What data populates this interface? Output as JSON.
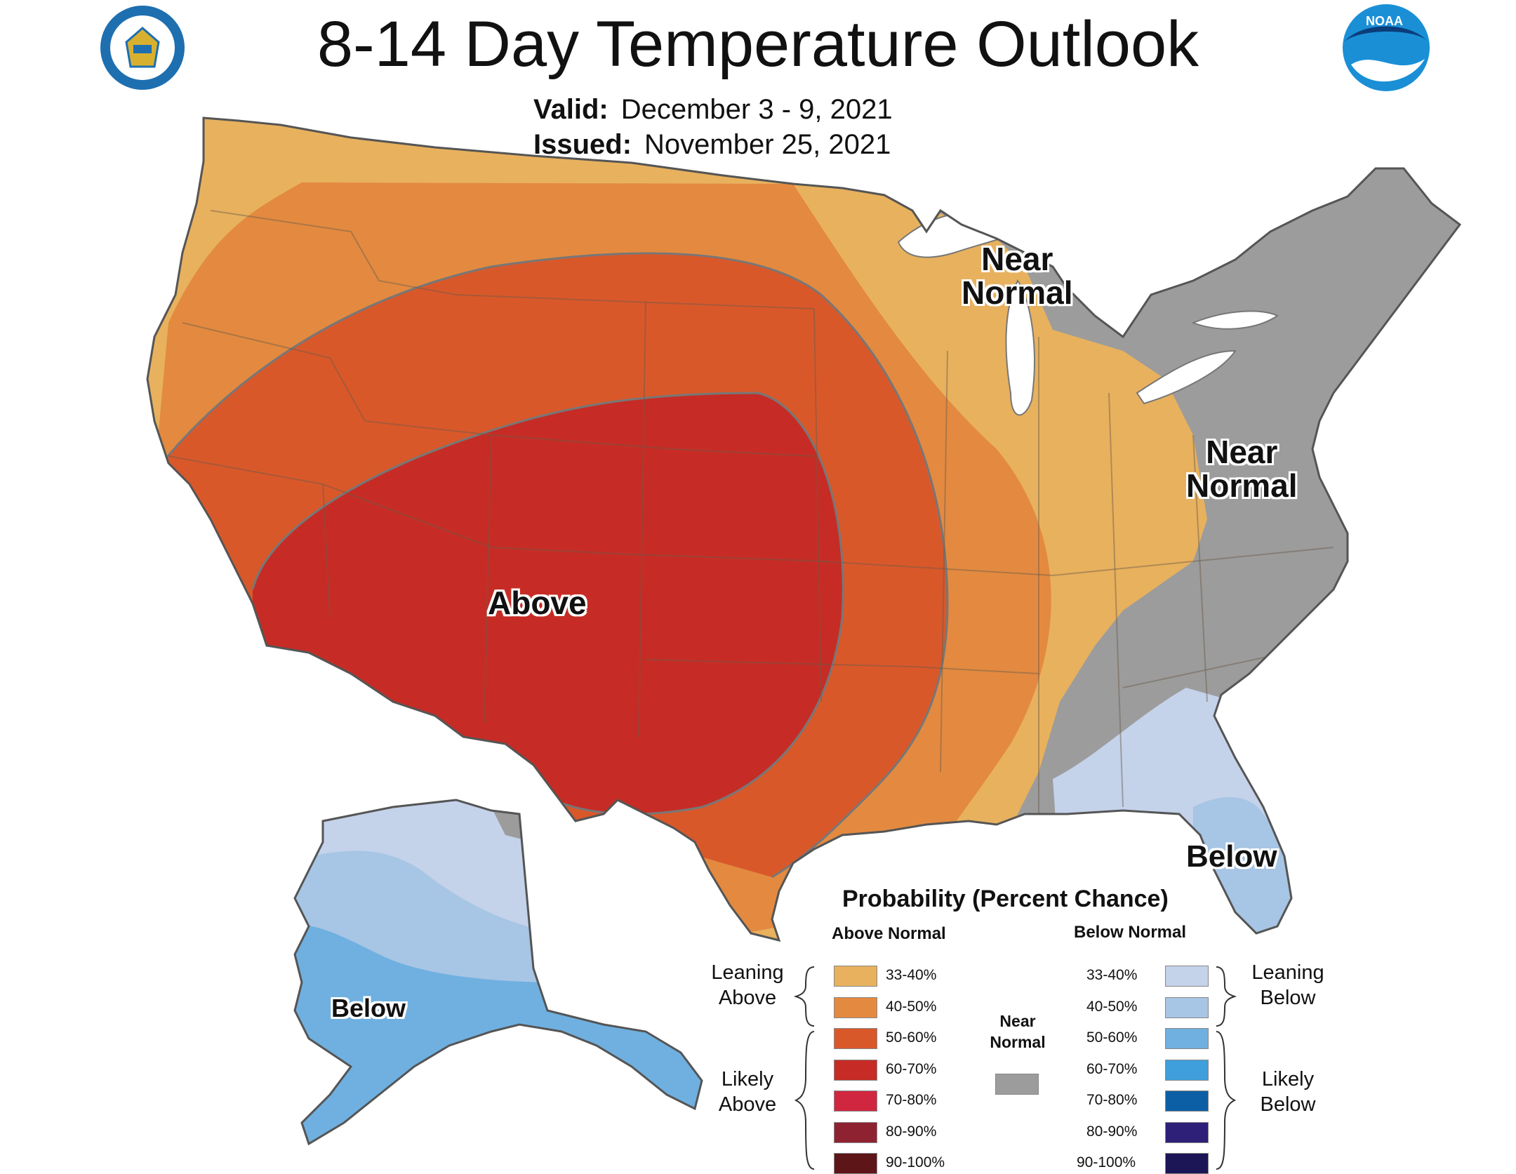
{
  "header": {
    "title": "8-14 Day Temperature Outlook",
    "valid_label": "Valid:",
    "valid_value": "December 3 - 9, 2021",
    "issued_label": "Issued:",
    "issued_value": "November 25, 2021"
  },
  "logos": {
    "left": "commerce-seal-icon",
    "right": "noaa-logo-icon",
    "right_text": "NOAA"
  },
  "map_labels": {
    "above": "Above",
    "near_normal_north": [
      "Near",
      "Normal"
    ],
    "near_normal_east": [
      "Near",
      "Normal"
    ],
    "below_florida": "Below",
    "below_alaska": "Below"
  },
  "colors": {
    "above_33_40": "#e8b15e",
    "above_40_50": "#e38a40",
    "above_50_60": "#d9582a",
    "above_60_70": "#c62c25",
    "above_70_80": "#d1263f",
    "above_80_90": "#8f2231",
    "above_90_100": "#5e1518",
    "near_normal": "#9c9c9c",
    "below_33_40": "#c4d2ea",
    "below_40_50": "#a7c5e4",
    "below_50_60": "#6fb0e0",
    "below_60_70": "#3f9fdc",
    "below_70_80": "#0d5fa5",
    "below_80_90": "#2e1f78",
    "below_90_100": "#1c1556",
    "boundary": "#777777",
    "water": "#ffffff"
  },
  "legend": {
    "title": "Probability (Percent Chance)",
    "above_header": "Above Normal",
    "below_header": "Below Normal",
    "near_normal": [
      "Near",
      "Normal"
    ],
    "leaning_above": [
      "Leaning",
      "Above"
    ],
    "likely_above": [
      "Likely",
      "Above"
    ],
    "leaning_below": [
      "Leaning",
      "Below"
    ],
    "likely_below": [
      "Likely",
      "Below"
    ],
    "above_items": [
      "33-40%",
      "40-50%",
      "50-60%",
      "60-70%",
      "70-80%",
      "80-90%",
      "90-100%"
    ],
    "below_items": [
      "33-40%",
      "40-50%",
      "50-60%",
      "60-70%",
      "70-80%",
      "80-90%",
      "90-100%"
    ]
  }
}
